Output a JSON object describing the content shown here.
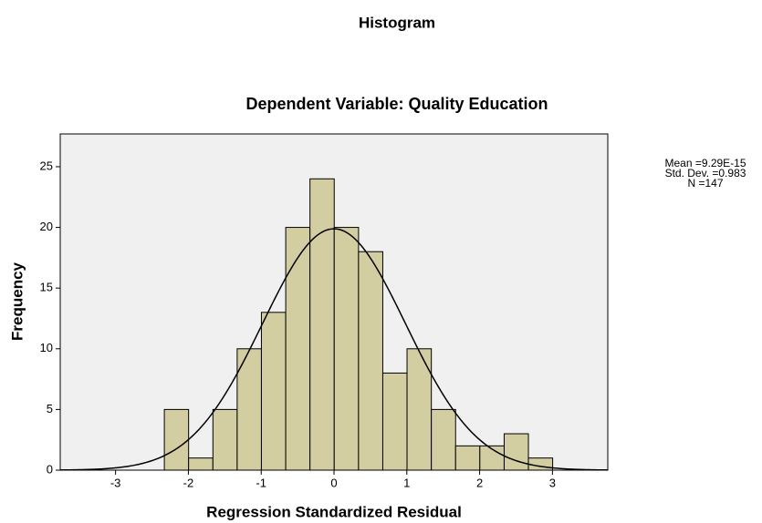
{
  "chart_data": {
    "type": "histogram",
    "title": "Histogram",
    "subtitle": "Dependent Variable: Quality Education",
    "x_label": "Regression Standardized Residual",
    "y_label": "Frequency",
    "bins": [
      -2.33,
      -1.997,
      -1.663,
      -1.33,
      -0.997,
      -0.663,
      -0.33,
      0.003,
      0.337,
      0.67,
      1.003,
      1.337,
      1.67,
      2.003,
      2.337,
      2.67,
      3.003
    ],
    "values": [
      5,
      1,
      5,
      10,
      13,
      20,
      24,
      20,
      18,
      8,
      10,
      5,
      2,
      2,
      3,
      1
    ],
    "color": "#d3cea1",
    "xlim": [
      -3.76,
      3.76
    ],
    "xticks": [
      -3,
      -2,
      -1,
      0,
      1,
      2,
      3
    ],
    "ylim": [
      0,
      27.7
    ],
    "yticks": [
      0,
      5,
      10,
      15,
      20,
      25
    ],
    "normal_curve": true,
    "stats": [
      {
        "value": 9.29e-15,
        "label": "Mean =9.29E-15"
      },
      {
        "value": 0.983,
        "label": "Std. Dev. =0.983"
      },
      {
        "value": 147,
        "label": "N =147"
      }
    ]
  }
}
